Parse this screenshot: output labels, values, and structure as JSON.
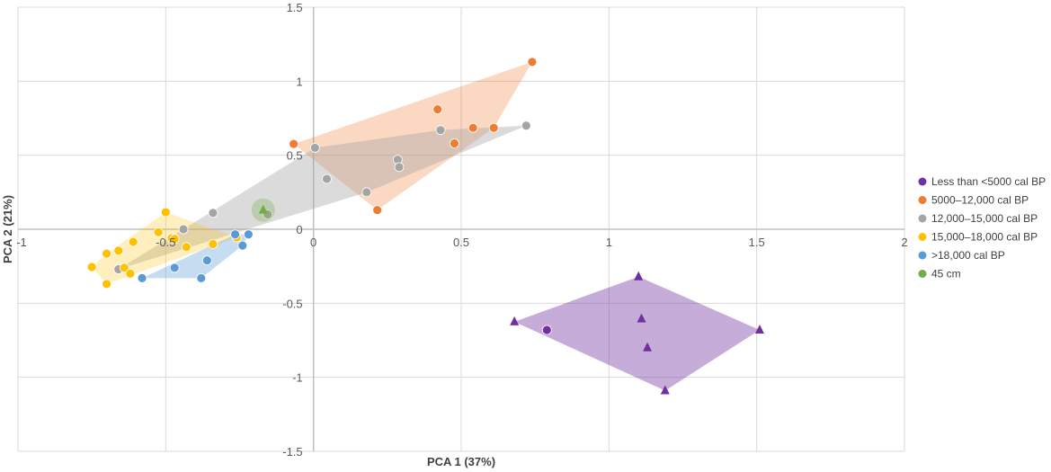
{
  "chart_data": {
    "type": "scatter",
    "xlabel": "PCA 1 (37%)",
    "ylabel": "PCA 2 (21%)",
    "xlim": [
      -1,
      2
    ],
    "ylim": [
      -1.5,
      1.5
    ],
    "xticks": [
      "-1",
      "-0.5",
      "0",
      "0.5",
      "1",
      "1.5",
      "2"
    ],
    "yticks": [
      "1.5",
      "1",
      "0.5",
      "0",
      "-0.5",
      "-1",
      "-1.5"
    ],
    "grid": true,
    "legend_position": "right",
    "series": [
      {
        "name": "Less than <5000 cal BP",
        "color": "#7030A0",
        "marker": "circle",
        "hull": true,
        "points": [
          [
            0.79,
            -0.68
          ]
        ],
        "extra_points_marker": "triangle",
        "extra_points": [
          [
            0.68,
            -0.625
          ],
          [
            1.1,
            -0.32
          ],
          [
            1.11,
            -0.605
          ],
          [
            1.13,
            -0.8
          ],
          [
            1.19,
            -1.09
          ],
          [
            1.51,
            -0.68
          ]
        ]
      },
      {
        "name": "5000–12,000 cal BP",
        "color": "#ED7D31",
        "marker": "circle",
        "hull": true,
        "points": [
          [
            -0.067,
            0.576
          ],
          [
            0.216,
            0.13
          ],
          [
            0.42,
            0.81
          ],
          [
            0.477,
            0.58
          ],
          [
            0.54,
            0.685
          ],
          [
            0.61,
            0.685
          ],
          [
            0.74,
            1.13
          ]
        ]
      },
      {
        "name": "12,000–15,000 cal BP",
        "color": "#A5A5A5",
        "marker": "circle",
        "hull": true,
        "points": [
          [
            0.005,
            0.55
          ],
          [
            0.045,
            0.34
          ],
          [
            0.18,
            0.25
          ],
          [
            0.285,
            0.47
          ],
          [
            0.29,
            0.42
          ],
          [
            0.43,
            0.67
          ],
          [
            0.72,
            0.7
          ],
          [
            -0.34,
            0.11
          ],
          [
            -0.44,
            0.0
          ],
          [
            -0.155,
            0.1
          ],
          [
            -0.66,
            -0.27
          ]
        ]
      },
      {
        "name": "15,000–18,000 cal BP",
        "color": "#FFC000",
        "marker": "circle",
        "hull": true,
        "points": [
          [
            -0.5,
            0.115
          ],
          [
            -0.525,
            -0.02
          ],
          [
            -0.48,
            -0.06
          ],
          [
            -0.47,
            -0.065
          ],
          [
            -0.61,
            -0.085
          ],
          [
            -0.66,
            -0.145
          ],
          [
            -0.7,
            -0.165
          ],
          [
            -0.75,
            -0.255
          ],
          [
            -0.7,
            -0.37
          ],
          [
            -0.64,
            -0.26
          ],
          [
            -0.62,
            -0.3
          ],
          [
            -0.43,
            -0.12
          ],
          [
            -0.34,
            -0.1
          ],
          [
            -0.26,
            -0.055
          ]
        ]
      },
      {
        "name": ">18,000 cal BP",
        "color": "#5B9BD5",
        "marker": "circle",
        "hull": true,
        "points": [
          [
            -0.265,
            -0.035
          ],
          [
            -0.22,
            -0.035
          ],
          [
            -0.24,
            -0.11
          ],
          [
            -0.36,
            -0.21
          ],
          [
            -0.47,
            -0.26
          ],
          [
            -0.38,
            -0.33
          ],
          [
            -0.58,
            -0.33
          ]
        ]
      },
      {
        "name": "45 cm",
        "color": "#70AD47",
        "marker": "triangle",
        "hull": false,
        "halo": true,
        "points": [
          [
            -0.17,
            0.13
          ]
        ]
      }
    ]
  }
}
